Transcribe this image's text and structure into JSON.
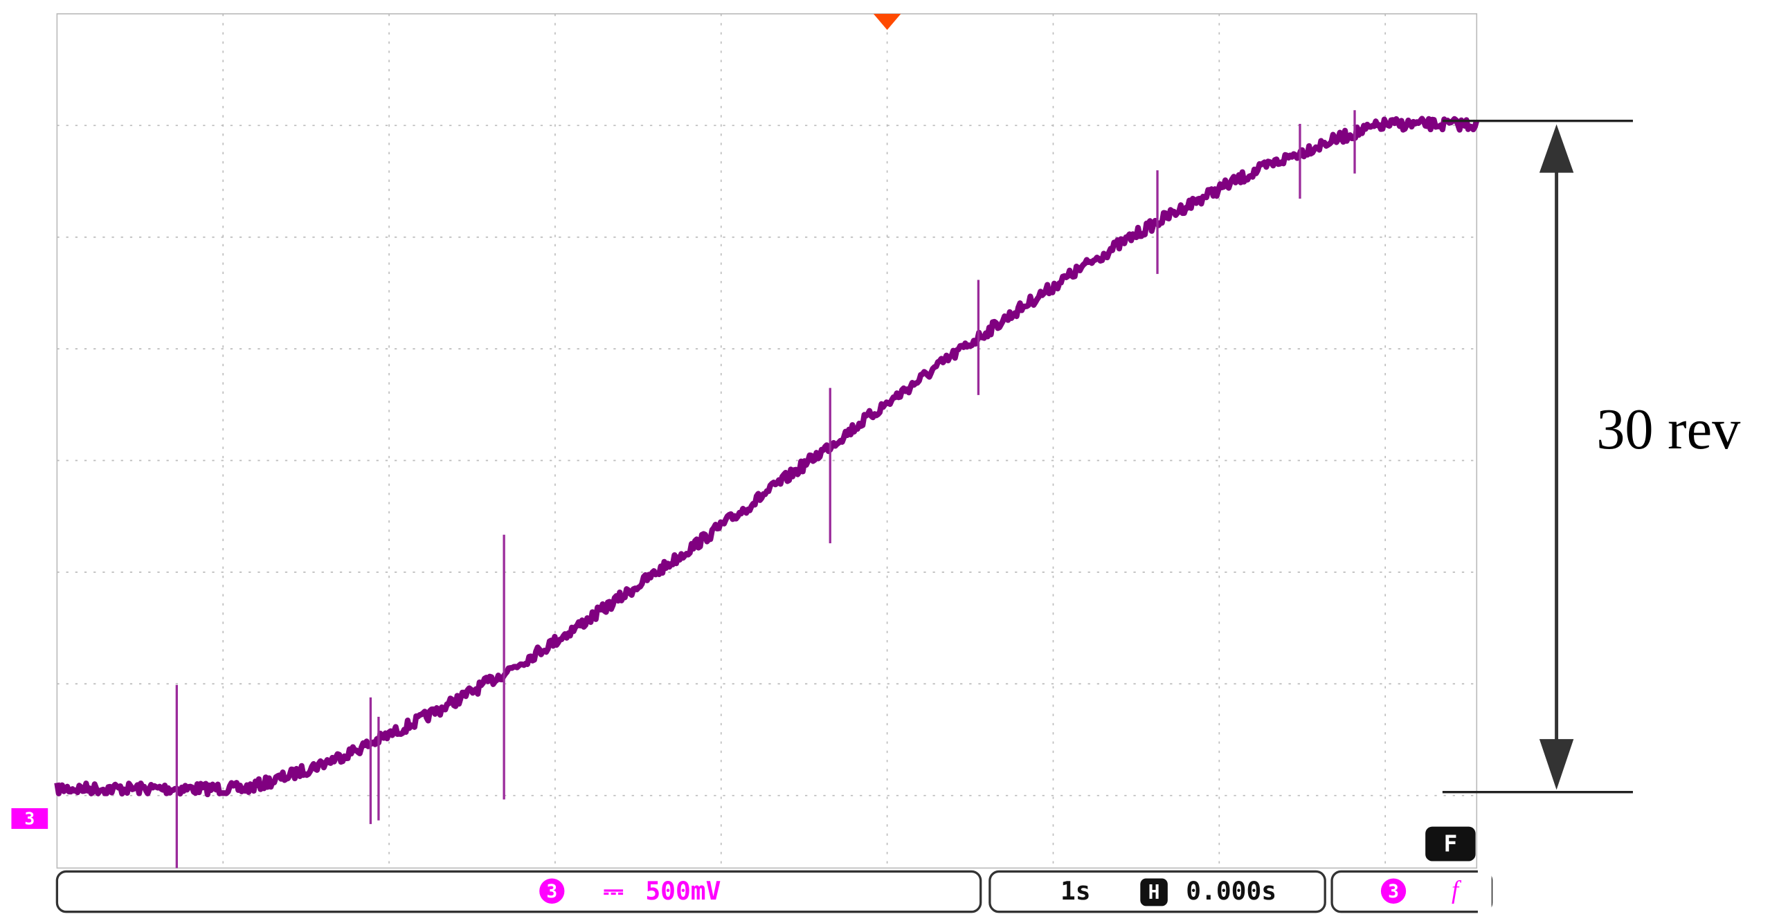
{
  "annotation": "30 rev",
  "channel_marker": "3",
  "status": {
    "channel": "3",
    "coupling": "⎓",
    "volts_per_div": "500mV",
    "time_per_div": "1s",
    "horizontal_icon": "H",
    "delay": "0.000s",
    "trigger_channel": "3",
    "trigger_slope": "f",
    "mode": "F"
  }
}
